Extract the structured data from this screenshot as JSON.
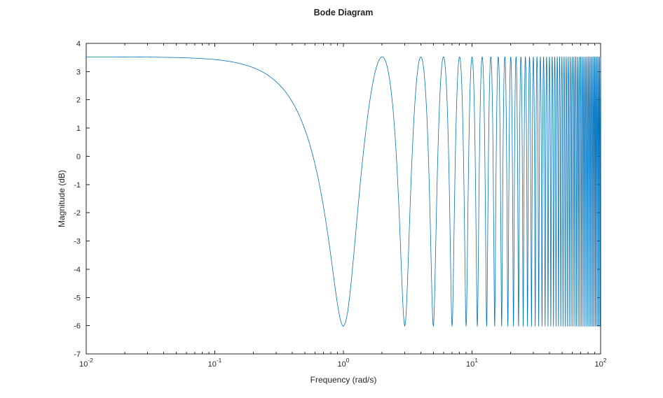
{
  "chart_data": {
    "type": "line",
    "title": "Bode Diagram",
    "xlabel": "Frequency (rad/s)",
    "ylabel": "Magnitude (dB)",
    "x_scale": "log",
    "xlim": [
      0.01,
      100
    ],
    "ylim": [
      -7,
      4
    ],
    "y_ticks": [
      4,
      3,
      2,
      1,
      0,
      -1,
      -2,
      -3,
      -4,
      -5,
      -6,
      -7
    ],
    "x_tick_exponents": [
      -2,
      -1,
      0,
      1,
      2
    ],
    "x_minor_multiples": [
      2,
      3,
      4,
      5,
      6,
      7,
      8,
      9
    ],
    "grid": false,
    "legend_position": "none",
    "colors": {
      "line": "#0072BD",
      "axis": "#262626",
      "text": "#262626",
      "background": "#ffffff"
    },
    "series": [
      {
        "name": "magnitude",
        "model": "dB(w) = 10*log10(1 + b^2 + 2*b*cos(w*T))",
        "params": {
          "b": 0.5,
          "T": 3.141592653589793
        },
        "low_freq_db": 3.52,
        "max_db": 3.52,
        "min_db": -6.02,
        "minima_at_rad_s": "odd integers (1, 3, 5, ...)",
        "maxima_at_rad_s": "even integers (2, 4, 6, ...)"
      }
    ]
  }
}
